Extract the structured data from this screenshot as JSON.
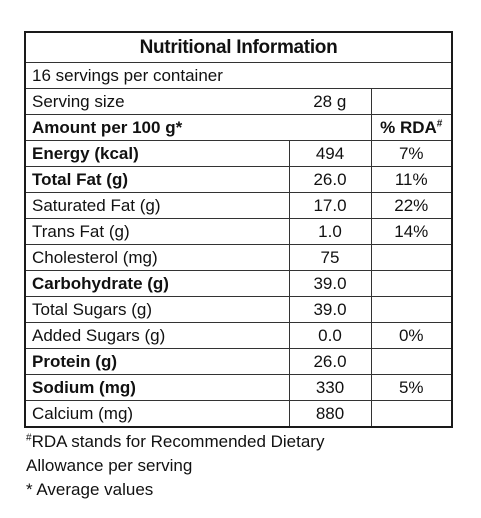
{
  "title": "Nutritional Information",
  "servings_text": "16 servings per container",
  "serving_size": {
    "label": "Serving size",
    "value": "28 g"
  },
  "header": {
    "amount_label": "Amount per 100 g*",
    "rda_label": "% RDA",
    "rda_marker": "#"
  },
  "rows": [
    {
      "name": "Energy (kcal)",
      "value": "494",
      "rda": "7%",
      "bold": true
    },
    {
      "name": "Total Fat (g)",
      "value": "26.0",
      "rda": "11%",
      "bold": true
    },
    {
      "name": "Saturated Fat (g)",
      "value": "17.0",
      "rda": "22%",
      "bold": false
    },
    {
      "name": "Trans Fat (g)",
      "value": "1.0",
      "rda": "14%",
      "bold": false
    },
    {
      "name": "Cholesterol (mg)",
      "value": "75",
      "rda": "",
      "bold": false
    },
    {
      "name": "Carbohydrate (g)",
      "value": "39.0",
      "rda": "",
      "bold": true
    },
    {
      "name": "Total Sugars (g)",
      "value": "39.0",
      "rda": "",
      "bold": false
    },
    {
      "name": "Added Sugars (g)",
      "value": "0.0",
      "rda": "0%",
      "bold": false
    },
    {
      "name": "Protein (g)",
      "value": "26.0",
      "rda": "",
      "bold": true
    },
    {
      "name": "Sodium (mg)",
      "value": "330",
      "rda": "5%",
      "bold": true
    },
    {
      "name": "Calcium (mg)",
      "value": "880",
      "rda": "",
      "bold": false
    }
  ],
  "footnotes": {
    "rda_marker": "#",
    "rda_note_line1": "RDA stands for Recommended Dietary",
    "rda_note_line2": "Allowance per serving",
    "average_note": "* Average values"
  }
}
